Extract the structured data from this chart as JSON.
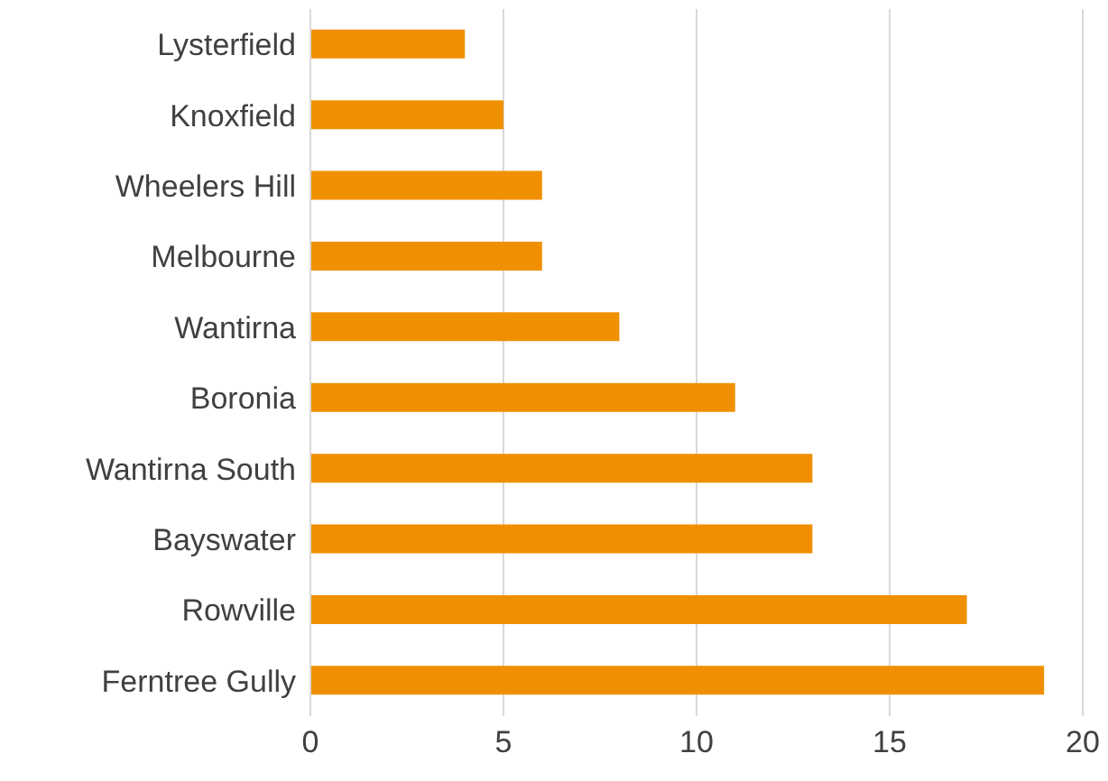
{
  "chart_data": {
    "type": "bar",
    "orientation": "horizontal",
    "categories": [
      "Lysterfield",
      "Knoxfield",
      "Wheelers Hill",
      "Melbourne",
      "Wantirna",
      "Boronia",
      "Wantirna South",
      "Bayswater",
      "Rowville",
      "Ferntree Gully"
    ],
    "values": [
      4,
      5,
      6,
      6,
      8,
      11,
      13,
      13,
      17,
      19
    ],
    "color": "#f09000",
    "xlim": [
      0,
      20
    ],
    "xticks": [
      0,
      5,
      10,
      15,
      20
    ],
    "grid": "x"
  }
}
